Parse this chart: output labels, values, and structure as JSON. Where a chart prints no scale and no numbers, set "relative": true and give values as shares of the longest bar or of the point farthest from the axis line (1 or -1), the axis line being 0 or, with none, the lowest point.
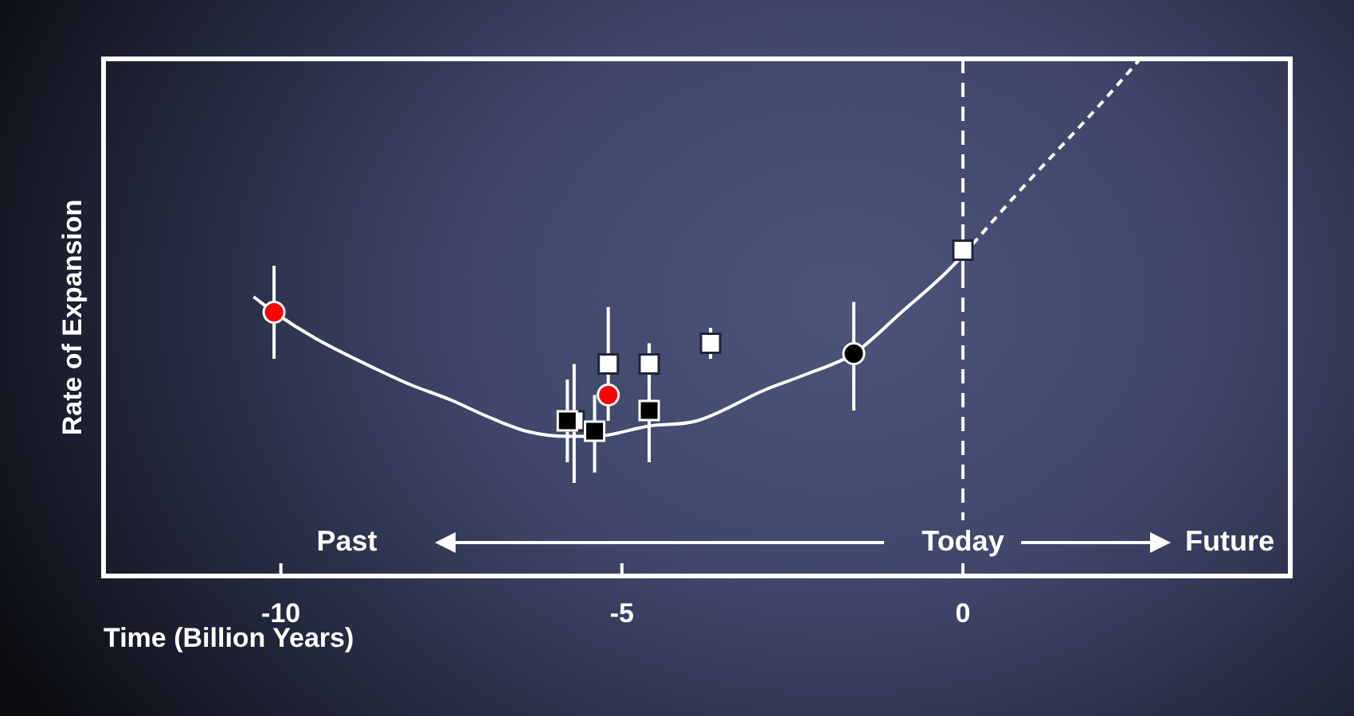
{
  "chart_data": {
    "type": "scatter",
    "xlabel": "Time (Billion Years)",
    "ylabel": "Rate of Expansion",
    "relative": true,
    "xlim": [
      -12.6,
      4.8
    ],
    "xticks": [
      -10,
      -5,
      0
    ],
    "grid": false,
    "legend": false,
    "annotations": [
      "Past",
      "Future"
    ],
    "ref_lines": [
      {
        "axis": "x",
        "value": 0,
        "label": "Today",
        "color": "#ffffff",
        "line_style": "dashed"
      }
    ],
    "series": [
      {
        "type": "line",
        "color": "#ffffff",
        "marker": "none",
        "line_style": "solid",
        "x": [
          -10.4,
          -10.1,
          -9.5,
          -8.6,
          -8.1,
          -7.5,
          -7.0,
          -6.4,
          -5.8,
          -5.4,
          -4.6,
          -3.9,
          -2.9,
          -2.3,
          -1.6,
          -0.9,
          -0.3,
          0
        ],
        "values": [
          0.54,
          0.51,
          0.46,
          0.4,
          0.37,
          0.34,
          0.31,
          0.28,
          0.27,
          0.27,
          0.29,
          0.3,
          0.36,
          0.39,
          0.43,
          0.51,
          0.58,
          0.62
        ]
      },
      {
        "type": "line",
        "color": "#ffffff",
        "marker": "none",
        "line_style": "dashed",
        "x": [
          0,
          0.8,
          2.0,
          2.6
        ],
        "values": [
          0.62,
          0.74,
          0.91,
          1.0
        ]
      },
      {
        "type": "line",
        "color": "#ffffff",
        "marker": "none",
        "line_style": "solid",
        "x": [
          -10.1,
          -10.1
        ],
        "values": [
          0.42,
          0.6
        ]
      },
      {
        "type": "line",
        "color": "#ffffff",
        "marker": "none",
        "line_style": "solid",
        "x": [
          -5.8,
          -5.8
        ],
        "values": [
          0.22,
          0.38
        ]
      },
      {
        "type": "line",
        "color": "#ffffff",
        "marker": "none",
        "line_style": "solid",
        "x": [
          -5.7,
          -5.7
        ],
        "values": [
          0.18,
          0.41
        ]
      },
      {
        "type": "line",
        "color": "#ffffff",
        "marker": "none",
        "line_style": "solid",
        "x": [
          -5.4,
          -5.4
        ],
        "values": [
          0.2,
          0.35
        ]
      },
      {
        "type": "line",
        "color": "#ffffff",
        "marker": "none",
        "line_style": "solid",
        "x": [
          -5.2,
          -5.2
        ],
        "values": [
          0.3,
          0.52
        ]
      },
      {
        "type": "line",
        "color": "#ffffff",
        "marker": "none",
        "line_style": "solid",
        "x": [
          -4.6,
          -4.6
        ],
        "values": [
          0.22,
          0.44
        ]
      },
      {
        "type": "line",
        "color": "#ffffff",
        "marker": "none",
        "line_style": "solid",
        "x": [
          -4.6,
          -4.6
        ],
        "values": [
          0.37,
          0.45
        ]
      },
      {
        "type": "line",
        "color": "#ffffff",
        "marker": "none",
        "line_style": "solid",
        "x": [
          -3.7,
          -3.7
        ],
        "values": [
          0.42,
          0.48
        ]
      },
      {
        "type": "line",
        "color": "#ffffff",
        "marker": "none",
        "line_style": "solid",
        "x": [
          -1.6,
          -1.6
        ],
        "values": [
          0.32,
          0.53
        ]
      },
      {
        "type": "line",
        "color": "#ffffff",
        "marker": "none",
        "line_style": "solid",
        "x": [
          0,
          0
        ],
        "values": [
          0.58,
          0.68
        ]
      },
      {
        "color": "#ff0000",
        "marker": "circle",
        "x": [
          -10.1,
          -5.2
        ],
        "values": [
          0.51,
          0.35
        ]
      },
      {
        "color": "#000000",
        "marker": "square",
        "x": [
          -5.8,
          -5.4,
          -4.6
        ],
        "values": [
          0.3,
          0.28,
          0.32
        ]
      },
      {
        "color": "#ffffff",
        "marker": "square",
        "x": [
          -5.7,
          -5.2,
          -4.6,
          -3.7,
          0
        ],
        "values": [
          0.3,
          0.41,
          0.41,
          0.45,
          0.63
        ]
      },
      {
        "color": "#000000",
        "marker": "circle",
        "x": [
          -1.6
        ],
        "values": [
          0.43
        ]
      }
    ]
  }
}
